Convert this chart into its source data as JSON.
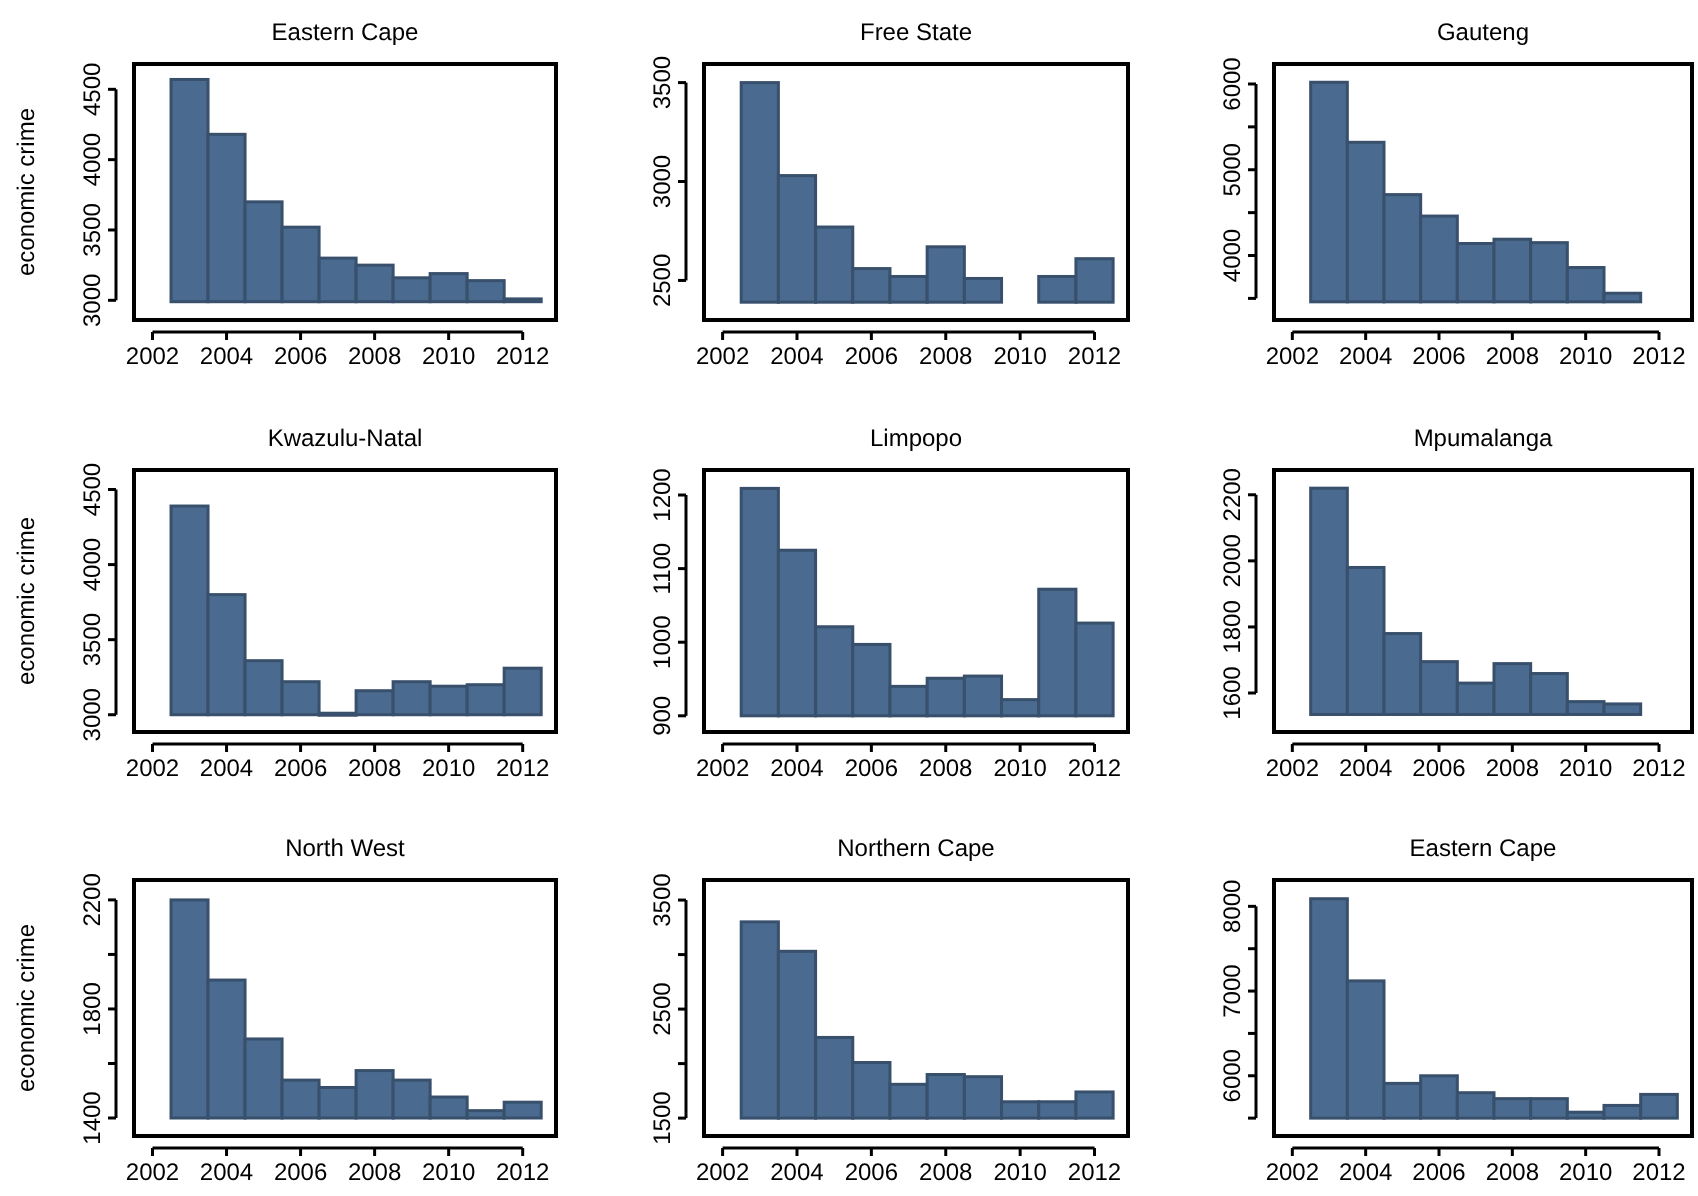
{
  "chart_data": [
    {
      "type": "bar",
      "title": "Eastern Cape",
      "ylabel": "economic crime",
      "x": [
        2003,
        2004,
        2005,
        2006,
        2007,
        2008,
        2009,
        2010,
        2011,
        2012
      ],
      "base": [
        2990,
        2990,
        2990,
        2990,
        2990,
        2990,
        2990,
        2990,
        2990,
        2990
      ],
      "values": [
        1580,
        1190,
        710,
        530,
        310,
        260,
        170,
        200,
        150,
        20
      ],
      "color": "#4a6b8f",
      "xlim": [
        2001.5,
        2012.9
      ],
      "xticks": [
        2002,
        2004,
        2006,
        2008,
        2010,
        2012
      ],
      "ylim": [
        2860,
        4680
      ],
      "yticks": [
        3000,
        3500,
        4000,
        4500
      ]
    },
    {
      "type": "bar",
      "title": "Free State",
      "x": [
        2003,
        2004,
        2005,
        2006,
        2007,
        2008,
        2009,
        2011,
        2012
      ],
      "base": [
        2390,
        2390,
        2390,
        2390,
        2390,
        2390,
        2390,
        2390,
        2390
      ],
      "values": [
        1110,
        640,
        380,
        170,
        130,
        280,
        120,
        130,
        220
      ],
      "color": "#4a6b8f",
      "xlim": [
        2001.5,
        2012.9
      ],
      "xticks": [
        2002,
        2004,
        2006,
        2008,
        2010,
        2012
      ],
      "ylim": [
        2300,
        3594
      ],
      "yticks": [
        2500,
        3000,
        3500
      ]
    },
    {
      "type": "bar",
      "title": "Gauteng",
      "x": [
        2003,
        2004,
        2005,
        2006,
        2007,
        2008,
        2009,
        2010,
        2011
      ],
      "base": [
        3460,
        3460,
        3460,
        3460,
        3460,
        3460,
        3460,
        3460,
        3460
      ],
      "values": [
        2560,
        1860,
        1250,
        1000,
        680,
        730,
        690,
        400,
        100
      ],
      "color": "#4a6b8f",
      "xlim": [
        2001.5,
        2012.9
      ],
      "xticks": [
        2002,
        2004,
        2006,
        2008,
        2010,
        2012
      ],
      "ylim": [
        3248,
        6233
      ],
      "yticks": [
        {
          "value": 3500,
          "label": null
        },
        4000,
        {
          "value": 4500,
          "label": null
        },
        5000,
        {
          "value": 5500,
          "label": null
        },
        6000
      ]
    },
    {
      "type": "bar",
      "title": "Kwazulu-Natal",
      "ylabel": "economic crime",
      "x": [
        2003,
        2004,
        2005,
        2006,
        2007,
        2008,
        2009,
        2010,
        2011,
        2012
      ],
      "base": [
        3000,
        3000,
        3000,
        3000,
        3000,
        3000,
        3000,
        3000,
        3000,
        3000
      ],
      "values": [
        1390,
        800,
        360,
        220,
        10,
        160,
        220,
        190,
        200,
        310
      ],
      "color": "#4a6b8f",
      "xlim": [
        2001.5,
        2012.9
      ],
      "xticks": [
        2002,
        2004,
        2006,
        2008,
        2010,
        2012
      ],
      "ylim": [
        2885,
        4630
      ],
      "yticks": [
        3000,
        3500,
        4000,
        4500
      ]
    },
    {
      "type": "bar",
      "title": "Limpopo",
      "x": [
        2003,
        2004,
        2005,
        2006,
        2007,
        2008,
        2009,
        2010,
        2011,
        2012
      ],
      "base": [
        900,
        900,
        900,
        900,
        900,
        900,
        900,
        900,
        900,
        900
      ],
      "values": [
        309,
        225,
        121,
        97,
        40,
        51,
        54,
        22,
        172,
        126
      ],
      "color": "#4a6b8f",
      "xlim": [
        2001.5,
        2012.9
      ],
      "xticks": [
        2002,
        2004,
        2006,
        2008,
        2010,
        2012
      ],
      "ylim": [
        878,
        1234
      ],
      "yticks": [
        900,
        1000,
        1100,
        1200
      ]
    },
    {
      "type": "bar",
      "title": "Mpumalanga",
      "x": [
        2003,
        2004,
        2005,
        2006,
        2007,
        2008,
        2009,
        2010,
        2011
      ],
      "base": [
        1535,
        1535,
        1535,
        1535,
        1535,
        1535,
        1535,
        1535,
        1535
      ],
      "values": [
        685,
        445,
        245,
        160,
        95,
        154,
        124,
        39,
        32
      ],
      "color": "#4a6b8f",
      "xlim": [
        2001.5,
        2012.9
      ],
      "xticks": [
        2002,
        2004,
        2006,
        2008,
        2010,
        2012
      ],
      "ylim": [
        1482,
        2275
      ],
      "yticks": [
        1600,
        1800,
        2000,
        2200
      ]
    },
    {
      "type": "bar",
      "title": "North West",
      "ylabel": "economic crime",
      "x": [
        2003,
        2004,
        2005,
        2006,
        2007,
        2008,
        2009,
        2010,
        2011,
        2012
      ],
      "base": [
        1400,
        1400,
        1400,
        1400,
        1400,
        1400,
        1400,
        1400,
        1400,
        1400
      ],
      "values": [
        800,
        506,
        290,
        139,
        112,
        174,
        139,
        77,
        27,
        58
      ],
      "color": "#4a6b8f",
      "xlim": [
        2001.5,
        2012.9
      ],
      "xticks": [
        2002,
        2004,
        2006,
        2008,
        2010,
        2012
      ],
      "ylim": [
        1334,
        2273
      ],
      "yticks": [
        1400,
        {
          "value": 1600,
          "label": null
        },
        1800,
        {
          "value": 2000,
          "label": null
        },
        2200
      ]
    },
    {
      "type": "bar",
      "title": "Northern Cape",
      "x": [
        2003,
        2004,
        2005,
        2006,
        2007,
        2008,
        2009,
        2010,
        2011,
        2012
      ],
      "base": [
        1500,
        1500,
        1500,
        1500,
        1500,
        1500,
        1500,
        1500,
        1500,
        1500
      ],
      "values": [
        1800,
        1530,
        740,
        510,
        310,
        400,
        380,
        150,
        150,
        240
      ],
      "color": "#4a6b8f",
      "xlim": [
        2001.5,
        2012.9
      ],
      "xticks": [
        2002,
        2004,
        2006,
        2008,
        2010,
        2012
      ],
      "ylim": [
        1336,
        3684
      ],
      "yticks": [
        1500,
        {
          "value": 2000,
          "label": null
        },
        2500,
        {
          "value": 3000,
          "label": null
        },
        3500
      ]
    },
    {
      "type": "bar",
      "title": "Eastern Cape",
      "x": [
        2003,
        2004,
        2005,
        2006,
        2007,
        2008,
        2009,
        2010,
        2011,
        2012
      ],
      "base": [
        5500,
        5500,
        5500,
        5500,
        5500,
        5500,
        5500,
        5500,
        5500,
        5500
      ],
      "values": [
        2590,
        1620,
        410,
        500,
        300,
        230,
        230,
        70,
        150,
        280
      ],
      "color": "#4a6b8f",
      "xlim": [
        2001.5,
        2012.9
      ],
      "xticks": [
        2002,
        2004,
        2006,
        2008,
        2010,
        2012
      ],
      "ylim": [
        5289,
        8311
      ],
      "yticks": [
        {
          "value": 5500,
          "label": null
        },
        6000,
        {
          "value": 6500,
          "label": null
        },
        7000,
        {
          "value": 7500,
          "label": null
        },
        8000
      ]
    }
  ]
}
